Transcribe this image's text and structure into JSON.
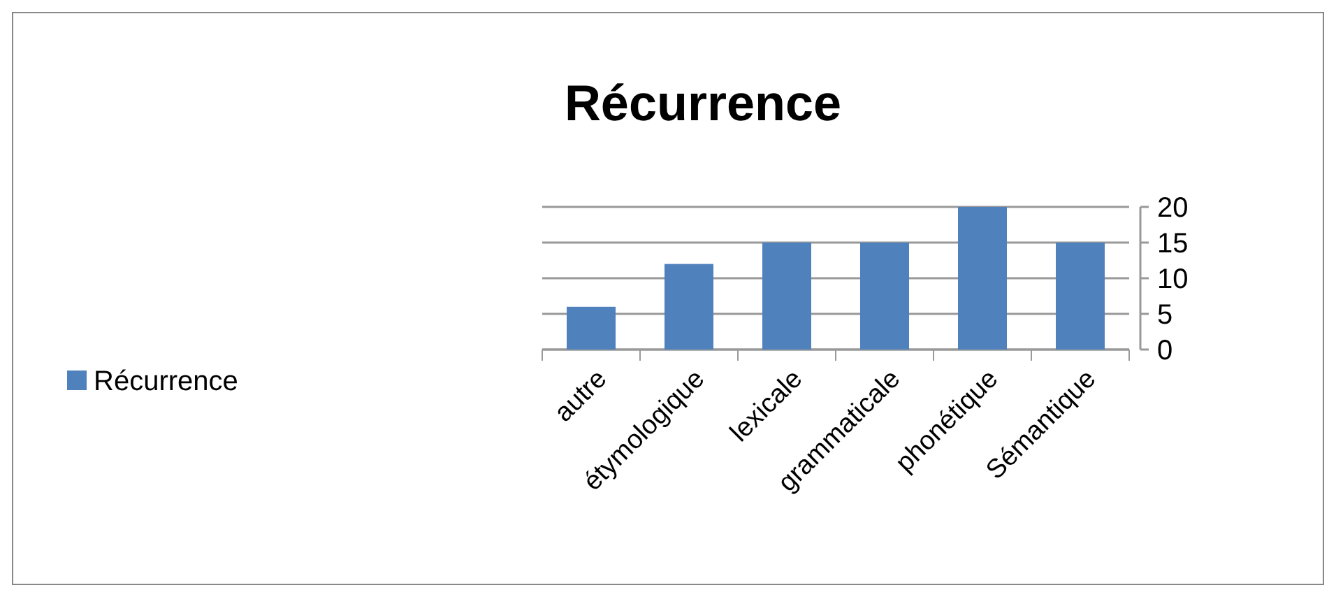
{
  "chart_data": {
    "type": "bar",
    "title": "Récurrence",
    "categories": [
      "autre",
      "étymologique",
      "lexicale",
      "grammaticale",
      "phonétique",
      "Sémantique"
    ],
    "series": [
      {
        "name": "Récurrence",
        "color": "#4f81bd",
        "values": [
          6,
          12,
          15,
          15,
          20,
          15
        ]
      }
    ],
    "ylim": [
      0,
      20
    ],
    "yticks": [
      0,
      5,
      10,
      15,
      20
    ],
    "grid": "y",
    "legend": "left"
  }
}
